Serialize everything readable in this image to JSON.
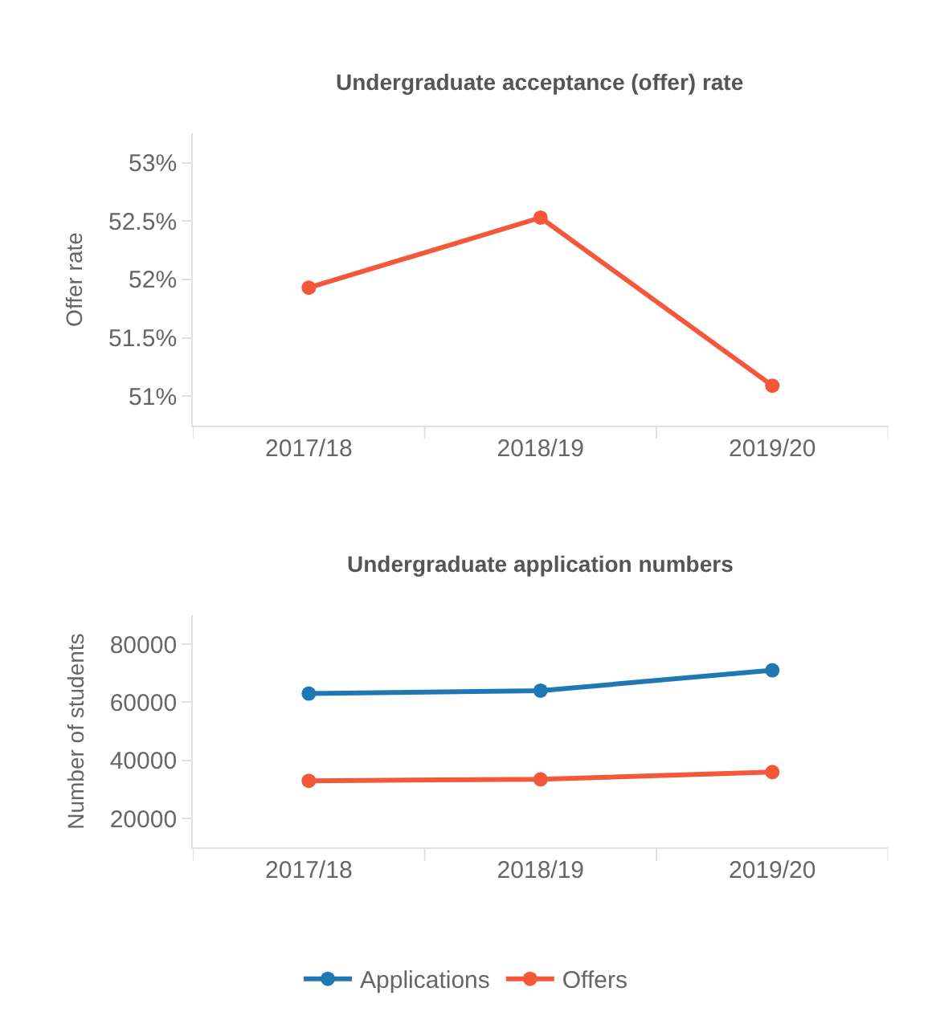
{
  "chart_data": [
    {
      "type": "line",
      "title": "Undergraduate acceptance (offer) rate",
      "ylabel": "Offer rate",
      "categories": [
        "2017/18",
        "2018/19",
        "2019/20"
      ],
      "series": [
        {
          "color": "#f4573a",
          "values": [
            51.93,
            52.53,
            51.09
          ]
        }
      ],
      "ylim": [
        50.75,
        53.25
      ],
      "yticks": [
        {
          "value": 51,
          "label": "51%"
        },
        {
          "value": 51.5,
          "label": "51.5%"
        },
        {
          "value": 52,
          "label": "52%"
        },
        {
          "value": 52.5,
          "label": "52.5%"
        },
        {
          "value": 53,
          "label": "53%"
        }
      ],
      "grid": false,
      "marker": "circle",
      "line_style": "solid"
    },
    {
      "type": "line",
      "title": "Undergraduate application numbers",
      "ylabel": "Number of students",
      "categories": [
        "2017/18",
        "2018/19",
        "2019/20"
      ],
      "series": [
        {
          "name": "Applications",
          "color": "#1f77b4",
          "values": [
            63000,
            64000,
            71000
          ]
        },
        {
          "name": "Offers",
          "color": "#f4573a",
          "values": [
            33000,
            33500,
            36000
          ]
        }
      ],
      "ylim": [
        10000,
        90000
      ],
      "yticks": [
        20000,
        40000,
        60000,
        80000
      ],
      "grid": false,
      "marker": "circle",
      "line_style": "solid",
      "legend": "bottom"
    }
  ]
}
